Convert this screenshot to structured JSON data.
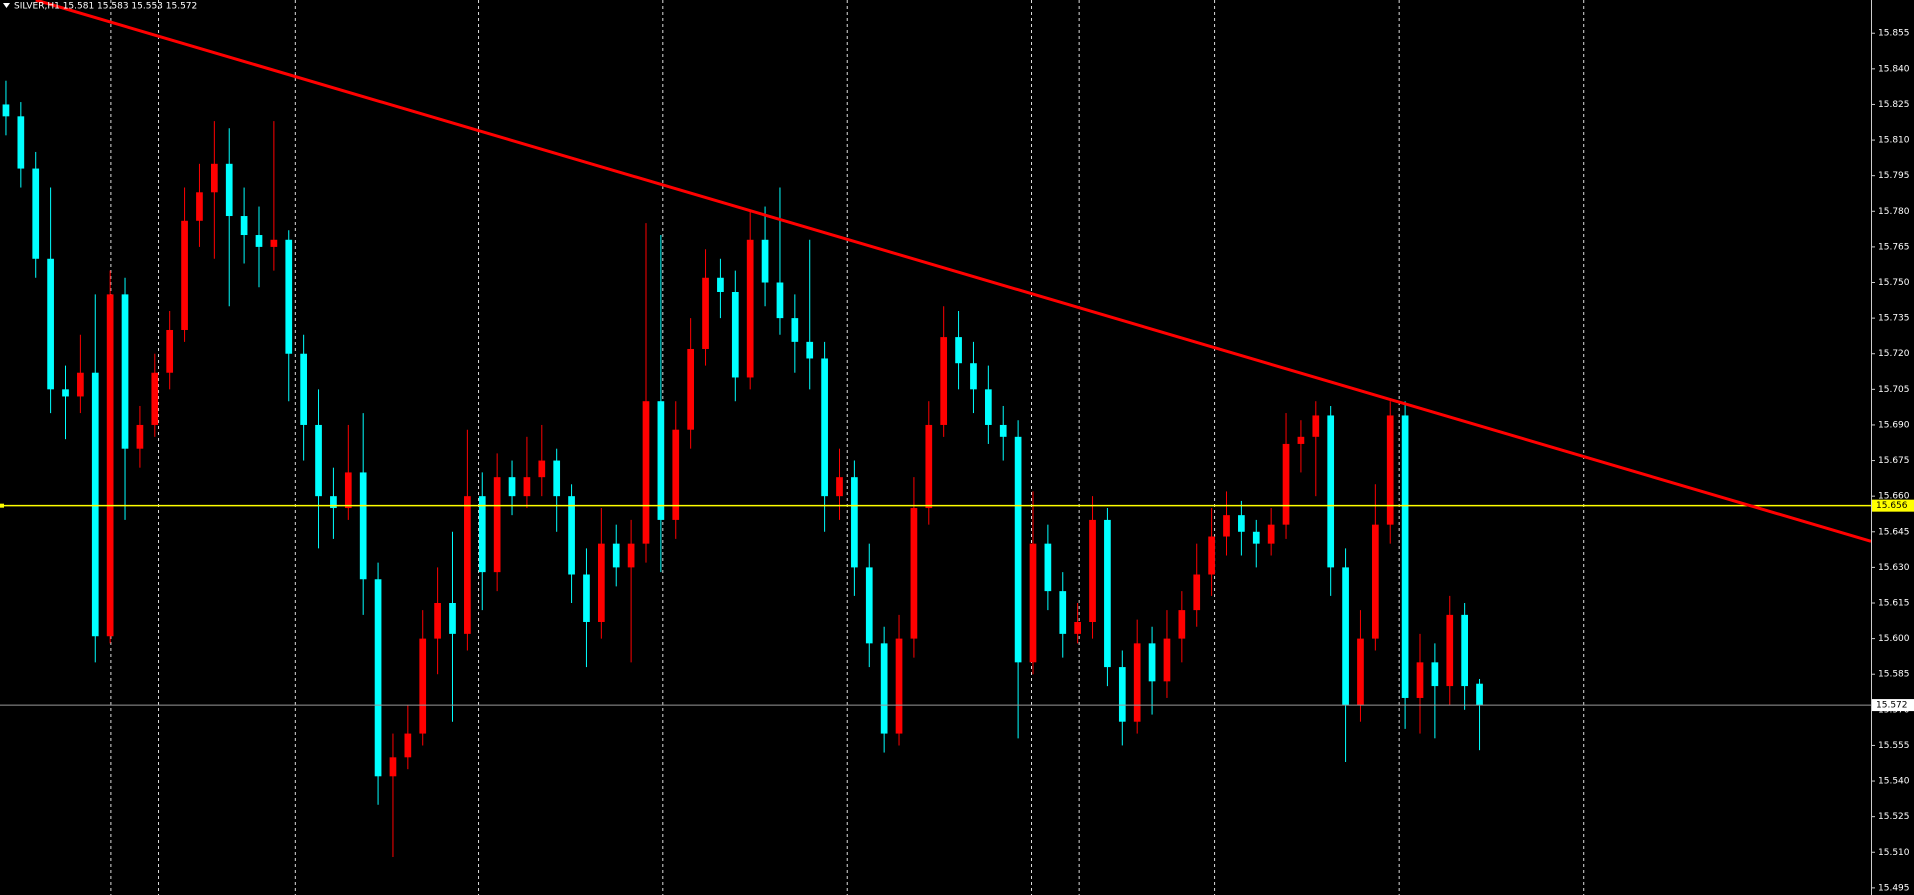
{
  "chart_data": {
    "type": "candlestick",
    "title": "SILVER,H1  15.581 15.583 15.553 15.572",
    "up_color": "#ff0000",
    "down_color": "#00ffff",
    "xlim": [
      -0.4,
      125.3
    ],
    "ylim": [
      15.492,
      15.869
    ],
    "yticks": [
      15.855,
      {
        "value": 15.84,
        "label": "15.840"
      },
      15.825,
      {
        "value": 15.81,
        "label": "15.810"
      },
      15.795,
      {
        "value": 15.78,
        "label": "15.780"
      },
      15.765,
      {
        "value": 15.75,
        "label": "15.750"
      },
      15.735,
      {
        "value": 15.72,
        "label": "15.720"
      },
      15.705,
      {
        "value": 15.69,
        "label": "15.690"
      },
      15.675,
      {
        "value": 15.66,
        "label": "15.660"
      },
      15.645,
      {
        "value": 15.63,
        "label": "15.630"
      },
      15.615,
      {
        "value": 15.6,
        "label": "15.600"
      },
      15.585,
      {
        "value": 15.57,
        "label": "15.570"
      },
      15.555,
      {
        "value": 15.54,
        "label": "15.540"
      },
      15.525,
      {
        "value": 15.51,
        "label": "15.510"
      },
      15.495
    ],
    "separators": [
      7.05,
      10.25,
      19.44,
      31.75,
      44.13,
      56.52,
      68.9,
      72.1,
      81.2,
      93.6,
      106.0
    ],
    "trendline": {
      "color": "#ff0000",
      "points": [
        [
          2,
          15.869
        ],
        [
          125.3,
          15.641
        ]
      ]
    },
    "hline": {
      "value": 15.656,
      "label": "15.656",
      "color": "#ffff00"
    },
    "current_price": {
      "value": 15.572,
      "label": "15.572"
    },
    "candles": [
      [
        15.825,
        15.835,
        15.812,
        15.82
      ],
      [
        15.82,
        15.826,
        15.79,
        15.798
      ],
      [
        15.798,
        15.805,
        15.752,
        15.76
      ],
      [
        15.76,
        15.79,
        15.695,
        15.705
      ],
      [
        15.705,
        15.715,
        15.684,
        15.702
      ],
      [
        15.702,
        15.728,
        15.695,
        15.712
      ],
      [
        15.712,
        15.745,
        15.59,
        15.601
      ],
      [
        15.601,
        15.755,
        15.598,
        15.745
      ],
      [
        15.745,
        15.752,
        15.65,
        15.68
      ],
      [
        15.68,
        15.698,
        15.672,
        15.69
      ],
      [
        15.69,
        15.72,
        15.685,
        15.712
      ],
      [
        15.712,
        15.738,
        15.705,
        15.73
      ],
      [
        15.73,
        15.79,
        15.725,
        15.776
      ],
      [
        15.776,
        15.8,
        15.765,
        15.788
      ],
      [
        15.788,
        15.818,
        15.76,
        15.8
      ],
      [
        15.8,
        15.815,
        15.74,
        15.778
      ],
      [
        15.778,
        15.79,
        15.758,
        15.77
      ],
      [
        15.77,
        15.782,
        15.748,
        15.765
      ],
      [
        15.765,
        15.818,
        15.755,
        15.768
      ],
      [
        15.768,
        15.772,
        15.7,
        15.72
      ],
      [
        15.72,
        15.728,
        15.675,
        15.69
      ],
      [
        15.69,
        15.705,
        15.638,
        15.66
      ],
      [
        15.66,
        15.672,
        15.642,
        15.655
      ],
      [
        15.655,
        15.69,
        15.65,
        15.67
      ],
      [
        15.67,
        15.695,
        15.61,
        15.625
      ],
      [
        15.625,
        15.632,
        15.53,
        15.542
      ],
      [
        15.542,
        15.56,
        15.508,
        15.55
      ],
      [
        15.55,
        15.572,
        15.545,
        15.56
      ],
      [
        15.56,
        15.612,
        15.555,
        15.6
      ],
      [
        15.6,
        15.63,
        15.585,
        15.615
      ],
      [
        15.615,
        15.645,
        15.565,
        15.602
      ],
      [
        15.602,
        15.688,
        15.595,
        15.66
      ],
      [
        15.66,
        15.67,
        15.612,
        15.628
      ],
      [
        15.628,
        15.678,
        15.62,
        15.668
      ],
      [
        15.668,
        15.675,
        15.652,
        15.66
      ],
      [
        15.66,
        15.685,
        15.655,
        15.668
      ],
      [
        15.668,
        15.69,
        15.66,
        15.675
      ],
      [
        15.675,
        15.68,
        15.645,
        15.66
      ],
      [
        15.66,
        15.665,
        15.615,
        15.627
      ],
      [
        15.627,
        15.638,
        15.588,
        15.607
      ],
      [
        15.607,
        15.655,
        15.6,
        15.64
      ],
      [
        15.64,
        15.648,
        15.622,
        15.63
      ],
      [
        15.63,
        15.65,
        15.59,
        15.64
      ],
      [
        15.64,
        15.775,
        15.632,
        15.7
      ],
      [
        15.7,
        15.77,
        15.628,
        15.65
      ],
      [
        15.65,
        15.7,
        15.642,
        15.688
      ],
      [
        15.688,
        15.735,
        15.68,
        15.722
      ],
      [
        15.722,
        15.764,
        15.715,
        15.752
      ],
      [
        15.752,
        15.76,
        15.735,
        15.746
      ],
      [
        15.746,
        15.755,
        15.7,
        15.71
      ],
      [
        15.71,
        15.78,
        15.705,
        15.768
      ],
      [
        15.768,
        15.782,
        15.74,
        15.75
      ],
      [
        15.75,
        15.79,
        15.728,
        15.735
      ],
      [
        15.735,
        15.745,
        15.712,
        15.725
      ],
      [
        15.725,
        15.768,
        15.705,
        15.718
      ],
      [
        15.718,
        15.725,
        15.645,
        15.66
      ],
      [
        15.66,
        15.68,
        15.65,
        15.668
      ],
      [
        15.668,
        15.675,
        15.618,
        15.63
      ],
      [
        15.63,
        15.64,
        15.588,
        15.598
      ],
      [
        15.598,
        15.605,
        15.552,
        15.56
      ],
      [
        15.56,
        15.61,
        15.555,
        15.6
      ],
      [
        15.6,
        15.668,
        15.592,
        15.655
      ],
      [
        15.655,
        15.7,
        15.648,
        15.69
      ],
      [
        15.69,
        15.74,
        15.685,
        15.727
      ],
      [
        15.727,
        15.738,
        15.705,
        15.716
      ],
      [
        15.716,
        15.725,
        15.695,
        15.705
      ],
      [
        15.705,
        15.715,
        15.682,
        15.69
      ],
      [
        15.69,
        15.698,
        15.675,
        15.685
      ],
      [
        15.685,
        15.692,
        15.558,
        15.59
      ],
      [
        15.59,
        15.662,
        15.585,
        15.64
      ],
      [
        15.64,
        15.648,
        15.612,
        15.62
      ],
      [
        15.62,
        15.628,
        15.592,
        15.602
      ],
      [
        15.602,
        15.615,
        15.598,
        15.607
      ],
      [
        15.607,
        15.66,
        15.6,
        15.65
      ],
      [
        15.65,
        15.655,
        15.58,
        15.588
      ],
      [
        15.588,
        15.595,
        15.555,
        15.565
      ],
      [
        15.565,
        15.608,
        15.56,
        15.598
      ],
      [
        15.598,
        15.605,
        15.568,
        15.582
      ],
      [
        15.582,
        15.612,
        15.575,
        15.6
      ],
      [
        15.6,
        15.62,
        15.59,
        15.612
      ],
      [
        15.612,
        15.64,
        15.605,
        15.627
      ],
      [
        15.627,
        15.655,
        15.618,
        15.643
      ],
      [
        15.643,
        15.662,
        15.635,
        15.652
      ],
      [
        15.652,
        15.658,
        15.635,
        15.645
      ],
      [
        15.645,
        15.65,
        15.63,
        15.64
      ],
      [
        15.64,
        15.655,
        15.635,
        15.648
      ],
      [
        15.648,
        15.695,
        15.642,
        15.682
      ],
      [
        15.682,
        15.692,
        15.67,
        15.685
      ],
      [
        15.685,
        15.7,
        15.66,
        15.694
      ],
      [
        15.694,
        15.698,
        15.618,
        15.63
      ],
      [
        15.63,
        15.638,
        15.548,
        15.572
      ],
      [
        15.572,
        15.612,
        15.565,
        15.6
      ],
      [
        15.6,
        15.665,
        15.595,
        15.648
      ],
      [
        15.648,
        15.7,
        15.64,
        15.694
      ],
      [
        15.694,
        15.7,
        15.562,
        15.575
      ],
      [
        15.575,
        15.602,
        15.56,
        15.59
      ],
      [
        15.59,
        15.598,
        15.558,
        15.58
      ],
      [
        15.58,
        15.618,
        15.572,
        15.61
      ],
      [
        15.61,
        15.615,
        15.57,
        15.58
      ],
      [
        15.581,
        15.583,
        15.553,
        15.572
      ]
    ]
  }
}
